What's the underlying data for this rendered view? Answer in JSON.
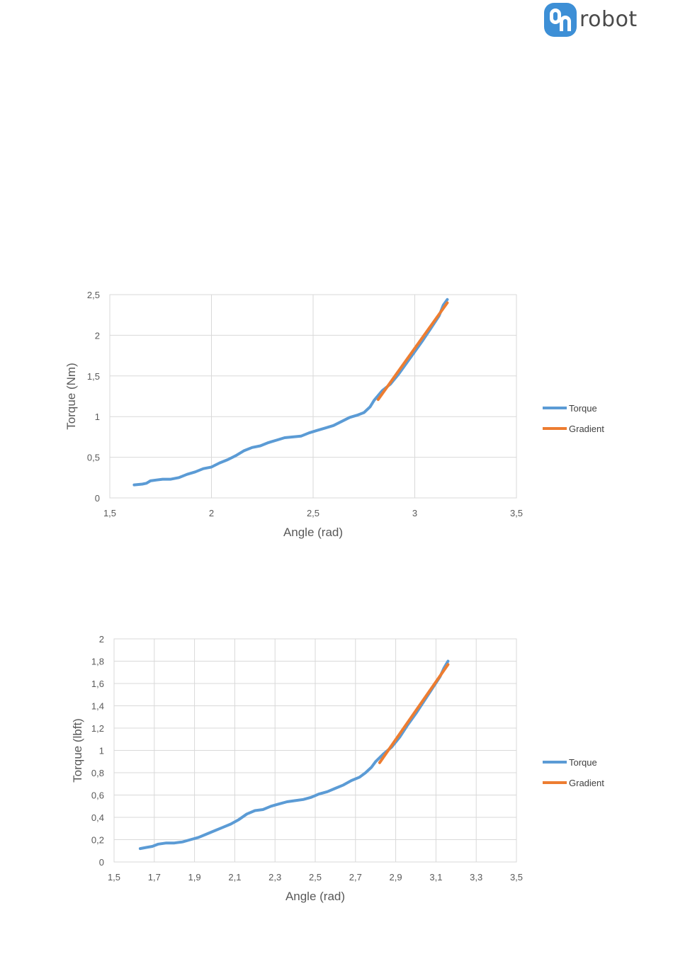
{
  "brand": {
    "name": "robot",
    "mark_color": "#3d8fd6"
  },
  "colors": {
    "torque": "#5b9bd5",
    "gradient": "#ed7d31",
    "grid": "#d9d9d9"
  },
  "chart_data": [
    {
      "type": "line",
      "title": "",
      "xlabel": "Angle (rad)",
      "ylabel": "Torque (Nm)",
      "xlim": [
        1.5,
        3.5
      ],
      "ylim": [
        0,
        2.5
      ],
      "xticks": [
        1.5,
        2,
        2.5,
        3,
        3.5
      ],
      "yticks": [
        0,
        0.5,
        1,
        1.5,
        2,
        2.5
      ],
      "x_tick_labels": [
        "1,5",
        "2",
        "2,5",
        "3",
        "3,5"
      ],
      "y_tick_labels": [
        "0",
        "0,5",
        "1",
        "1,5",
        "2",
        "2,5"
      ],
      "grid": true,
      "legend_position": "right",
      "series": [
        {
          "name": "Torque",
          "color": "#5b9bd5",
          "points": [
            [
              1.62,
              0.16
            ],
            [
              1.66,
              0.17
            ],
            [
              1.68,
              0.18
            ],
            [
              1.7,
              0.21
            ],
            [
              1.73,
              0.22
            ],
            [
              1.76,
              0.23
            ],
            [
              1.8,
              0.23
            ],
            [
              1.84,
              0.25
            ],
            [
              1.88,
              0.29
            ],
            [
              1.92,
              0.32
            ],
            [
              1.96,
              0.36
            ],
            [
              2.0,
              0.38
            ],
            [
              2.04,
              0.43
            ],
            [
              2.08,
              0.47
            ],
            [
              2.12,
              0.52
            ],
            [
              2.16,
              0.58
            ],
            [
              2.2,
              0.62
            ],
            [
              2.24,
              0.64
            ],
            [
              2.28,
              0.68
            ],
            [
              2.32,
              0.71
            ],
            [
              2.36,
              0.74
            ],
            [
              2.4,
              0.75
            ],
            [
              2.44,
              0.76
            ],
            [
              2.48,
              0.8
            ],
            [
              2.52,
              0.83
            ],
            [
              2.56,
              0.86
            ],
            [
              2.6,
              0.89
            ],
            [
              2.64,
              0.94
            ],
            [
              2.68,
              0.99
            ],
            [
              2.72,
              1.02
            ],
            [
              2.75,
              1.05
            ],
            [
              2.78,
              1.12
            ],
            [
              2.8,
              1.2
            ],
            [
              2.84,
              1.32
            ],
            [
              2.88,
              1.4
            ],
            [
              2.92,
              1.52
            ],
            [
              2.96,
              1.66
            ],
            [
              3.0,
              1.8
            ],
            [
              3.04,
              1.94
            ],
            [
              3.08,
              2.09
            ],
            [
              3.12,
              2.24
            ],
            [
              3.14,
              2.37
            ],
            [
              3.16,
              2.44
            ]
          ]
        },
        {
          "name": "Gradient",
          "color": "#ed7d31",
          "points": [
            [
              2.82,
              1.21
            ],
            [
              3.16,
              2.4
            ]
          ]
        }
      ]
    },
    {
      "type": "line",
      "title": "",
      "xlabel": "Angle (rad)",
      "ylabel": "Torque (lbft)",
      "xlim": [
        1.5,
        3.5
      ],
      "ylim": [
        0,
        2
      ],
      "xticks": [
        1.5,
        1.7,
        1.9,
        2.1,
        2.3,
        2.5,
        2.7,
        2.9,
        3.1,
        3.3,
        3.5
      ],
      "yticks": [
        0,
        0.2,
        0.4,
        0.6,
        0.8,
        1,
        1.2,
        1.4,
        1.6,
        1.8,
        2
      ],
      "x_tick_labels": [
        "1,5",
        "1,7",
        "1,9",
        "2,1",
        "2,3",
        "2,5",
        "2,7",
        "2,9",
        "3,1",
        "3,3",
        "3,5"
      ],
      "y_tick_labels": [
        "0",
        "0,2",
        "0,4",
        "0,6",
        "0,8",
        "1",
        "1,2",
        "1,4",
        "1,6",
        "1,8",
        "2"
      ],
      "grid": true,
      "legend_position": "right",
      "series": [
        {
          "name": "Torque",
          "color": "#5b9bd5",
          "points": [
            [
              1.63,
              0.12
            ],
            [
              1.66,
              0.13
            ],
            [
              1.69,
              0.14
            ],
            [
              1.72,
              0.16
            ],
            [
              1.76,
              0.17
            ],
            [
              1.8,
              0.17
            ],
            [
              1.84,
              0.18
            ],
            [
              1.88,
              0.2
            ],
            [
              1.92,
              0.22
            ],
            [
              1.96,
              0.25
            ],
            [
              2.0,
              0.28
            ],
            [
              2.04,
              0.31
            ],
            [
              2.08,
              0.34
            ],
            [
              2.12,
              0.38
            ],
            [
              2.16,
              0.43
            ],
            [
              2.2,
              0.46
            ],
            [
              2.24,
              0.47
            ],
            [
              2.28,
              0.5
            ],
            [
              2.32,
              0.52
            ],
            [
              2.36,
              0.54
            ],
            [
              2.4,
              0.55
            ],
            [
              2.44,
              0.56
            ],
            [
              2.48,
              0.58
            ],
            [
              2.52,
              0.61
            ],
            [
              2.56,
              0.63
            ],
            [
              2.6,
              0.66
            ],
            [
              2.64,
              0.69
            ],
            [
              2.68,
              0.73
            ],
            [
              2.72,
              0.76
            ],
            [
              2.75,
              0.8
            ],
            [
              2.78,
              0.85
            ],
            [
              2.8,
              0.9
            ],
            [
              2.84,
              0.97
            ],
            [
              2.88,
              1.03
            ],
            [
              2.92,
              1.12
            ],
            [
              2.96,
              1.23
            ],
            [
              3.0,
              1.33
            ],
            [
              3.04,
              1.44
            ],
            [
              3.08,
              1.55
            ],
            [
              3.12,
              1.66
            ],
            [
              3.14,
              1.74
            ],
            [
              3.16,
              1.8
            ]
          ]
        },
        {
          "name": "Gradient",
          "color": "#ed7d31",
          "points": [
            [
              2.82,
              0.89
            ],
            [
              3.16,
              1.77
            ]
          ]
        }
      ]
    }
  ]
}
